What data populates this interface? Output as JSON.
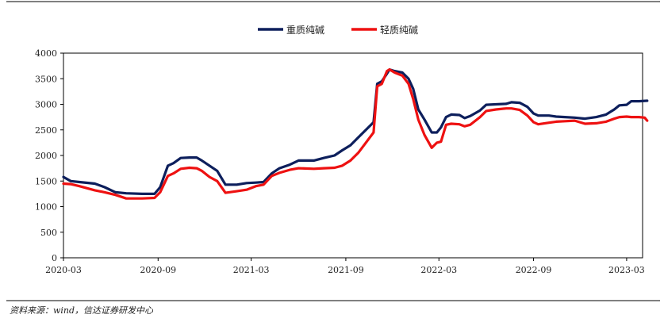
{
  "chart_data": {
    "type": "line",
    "title": "",
    "xlabel": "",
    "ylabel": "",
    "ylim": [
      0,
      4000
    ],
    "yticks": [
      0,
      500,
      1000,
      1500,
      2000,
      2500,
      3000,
      3500,
      4000
    ],
    "xticks": [
      "2020-03",
      "2020-09",
      "2021-03",
      "2021-09",
      "2022-03",
      "2022-09",
      "2023-03"
    ],
    "x_range": [
      "2020-03",
      "2023-04"
    ],
    "grid": false,
    "legend_position": "top-center",
    "series": [
      {
        "name": "重质纯碱",
        "color": "#0d1f5c",
        "points": [
          [
            "2020-03-01",
            1580
          ],
          [
            "2020-03-15",
            1500
          ],
          [
            "2020-04-01",
            1480
          ],
          [
            "2020-05-01",
            1450
          ],
          [
            "2020-05-20",
            1380
          ],
          [
            "2020-06-10",
            1280
          ],
          [
            "2020-07-01",
            1260
          ],
          [
            "2020-08-01",
            1250
          ],
          [
            "2020-08-25",
            1250
          ],
          [
            "2020-09-05",
            1380
          ],
          [
            "2020-09-20",
            1800
          ],
          [
            "2020-10-01",
            1850
          ],
          [
            "2020-10-15",
            1950
          ],
          [
            "2020-11-01",
            1960
          ],
          [
            "2020-11-15",
            1960
          ],
          [
            "2020-11-25",
            1900
          ],
          [
            "2020-12-10",
            1800
          ],
          [
            "2020-12-25",
            1700
          ],
          [
            "2021-01-10",
            1430
          ],
          [
            "2021-02-01",
            1430
          ],
          [
            "2021-02-20",
            1460
          ],
          [
            "2021-03-10",
            1470
          ],
          [
            "2021-03-25",
            1480
          ],
          [
            "2021-04-10",
            1650
          ],
          [
            "2021-04-25",
            1750
          ],
          [
            "2021-05-15",
            1820
          ],
          [
            "2021-06-01",
            1900
          ],
          [
            "2021-07-01",
            1900
          ],
          [
            "2021-07-20",
            1950
          ],
          [
            "2021-08-10",
            2000
          ],
          [
            "2021-08-25",
            2100
          ],
          [
            "2021-09-10",
            2200
          ],
          [
            "2021-09-25",
            2350
          ],
          [
            "2021-10-10",
            2500
          ],
          [
            "2021-10-25",
            2650
          ],
          [
            "2021-11-01",
            3400
          ],
          [
            "2021-11-10",
            3450
          ],
          [
            "2021-11-20",
            3600
          ],
          [
            "2021-11-25",
            3680
          ],
          [
            "2021-12-05",
            3650
          ],
          [
            "2021-12-20",
            3620
          ],
          [
            "2022-01-01",
            3500
          ],
          [
            "2022-01-10",
            3300
          ],
          [
            "2022-01-20",
            2900
          ],
          [
            "2022-02-01",
            2700
          ],
          [
            "2022-02-15",
            2450
          ],
          [
            "2022-02-25",
            2450
          ],
          [
            "2022-03-05",
            2550
          ],
          [
            "2022-03-15",
            2750
          ],
          [
            "2022-03-25",
            2800
          ],
          [
            "2022-04-10",
            2790
          ],
          [
            "2022-04-20",
            2730
          ],
          [
            "2022-05-01",
            2770
          ],
          [
            "2022-05-20",
            2880
          ],
          [
            "2022-06-01",
            2990
          ],
          [
            "2022-06-20",
            3000
          ],
          [
            "2022-07-10",
            3010
          ],
          [
            "2022-07-20",
            3040
          ],
          [
            "2022-08-05",
            3030
          ],
          [
            "2022-08-20",
            2950
          ],
          [
            "2022-09-01",
            2820
          ],
          [
            "2022-09-10",
            2780
          ],
          [
            "2022-10-01",
            2780
          ],
          [
            "2022-10-15",
            2760
          ],
          [
            "2022-11-01",
            2750
          ],
          [
            "2022-11-20",
            2740
          ],
          [
            "2022-12-10",
            2720
          ],
          [
            "2023-01-01",
            2750
          ],
          [
            "2023-01-20",
            2800
          ],
          [
            "2023-02-05",
            2900
          ],
          [
            "2023-02-15",
            2980
          ],
          [
            "2023-03-01",
            2990
          ],
          [
            "2023-03-10",
            3060
          ],
          [
            "2023-03-25",
            3060
          ],
          [
            "2023-04-10",
            3070
          ]
        ]
      },
      {
        "name": "轻质纯碱",
        "color": "#ee1111",
        "points": [
          [
            "2020-03-01",
            1450
          ],
          [
            "2020-03-15",
            1440
          ],
          [
            "2020-04-01",
            1400
          ],
          [
            "2020-05-01",
            1320
          ],
          [
            "2020-05-20",
            1280
          ],
          [
            "2020-06-10",
            1230
          ],
          [
            "2020-07-01",
            1160
          ],
          [
            "2020-08-01",
            1160
          ],
          [
            "2020-08-25",
            1170
          ],
          [
            "2020-09-05",
            1280
          ],
          [
            "2020-09-20",
            1600
          ],
          [
            "2020-10-01",
            1650
          ],
          [
            "2020-10-15",
            1740
          ],
          [
            "2020-11-01",
            1760
          ],
          [
            "2020-11-15",
            1750
          ],
          [
            "2020-11-25",
            1700
          ],
          [
            "2020-12-10",
            1580
          ],
          [
            "2020-12-25",
            1500
          ],
          [
            "2021-01-10",
            1270
          ],
          [
            "2021-02-01",
            1300
          ],
          [
            "2021-02-20",
            1330
          ],
          [
            "2021-03-10",
            1400
          ],
          [
            "2021-03-25",
            1430
          ],
          [
            "2021-04-10",
            1600
          ],
          [
            "2021-04-25",
            1660
          ],
          [
            "2021-05-15",
            1720
          ],
          [
            "2021-06-01",
            1750
          ],
          [
            "2021-07-01",
            1740
          ],
          [
            "2021-07-20",
            1750
          ],
          [
            "2021-08-10",
            1760
          ],
          [
            "2021-08-25",
            1800
          ],
          [
            "2021-09-10",
            1900
          ],
          [
            "2021-09-25",
            2050
          ],
          [
            "2021-10-10",
            2250
          ],
          [
            "2021-10-25",
            2450
          ],
          [
            "2021-11-01",
            3350
          ],
          [
            "2021-11-10",
            3400
          ],
          [
            "2021-11-20",
            3650
          ],
          [
            "2021-11-25",
            3680
          ],
          [
            "2021-12-05",
            3620
          ],
          [
            "2021-12-20",
            3560
          ],
          [
            "2022-01-01",
            3400
          ],
          [
            "2022-01-10",
            3100
          ],
          [
            "2022-01-20",
            2700
          ],
          [
            "2022-02-01",
            2400
          ],
          [
            "2022-02-15",
            2150
          ],
          [
            "2022-02-25",
            2250
          ],
          [
            "2022-03-05",
            2270
          ],
          [
            "2022-03-15",
            2600
          ],
          [
            "2022-03-25",
            2620
          ],
          [
            "2022-04-10",
            2610
          ],
          [
            "2022-04-20",
            2570
          ],
          [
            "2022-05-01",
            2600
          ],
          [
            "2022-05-20",
            2750
          ],
          [
            "2022-06-01",
            2870
          ],
          [
            "2022-06-20",
            2900
          ],
          [
            "2022-07-10",
            2920
          ],
          [
            "2022-07-20",
            2920
          ],
          [
            "2022-08-05",
            2890
          ],
          [
            "2022-08-20",
            2780
          ],
          [
            "2022-09-01",
            2650
          ],
          [
            "2022-09-10",
            2610
          ],
          [
            "2022-10-01",
            2640
          ],
          [
            "2022-10-15",
            2660
          ],
          [
            "2022-11-01",
            2670
          ],
          [
            "2022-11-20",
            2680
          ],
          [
            "2022-12-10",
            2620
          ],
          [
            "2023-01-01",
            2630
          ],
          [
            "2023-01-20",
            2660
          ],
          [
            "2023-02-05",
            2720
          ],
          [
            "2023-02-15",
            2750
          ],
          [
            "2023-03-01",
            2760
          ],
          [
            "2023-03-10",
            2750
          ],
          [
            "2023-03-25",
            2750
          ],
          [
            "2023-04-05",
            2740
          ],
          [
            "2023-04-10",
            2680
          ]
        ]
      }
    ]
  },
  "source_note": "资料来源：wind，信达证券研发中心"
}
